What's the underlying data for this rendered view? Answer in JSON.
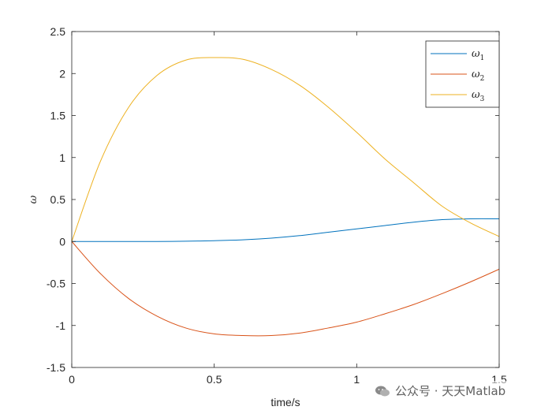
{
  "chart_data": {
    "type": "line",
    "xlabel": "time/s",
    "ylabel": "ω",
    "xlim": [
      0,
      1.5
    ],
    "ylim": [
      -1.5,
      2.5
    ],
    "x_ticks": [
      "0",
      "0.5",
      "1",
      "1.5"
    ],
    "y_ticks": [
      "-1.5",
      "-1",
      "-0.5",
      "0",
      "0.5",
      "1",
      "1.5",
      "2",
      "2.5"
    ],
    "grid": false,
    "legend_placement": "top-right",
    "x": [
      0,
      0.1,
      0.2,
      0.3,
      0.4,
      0.5,
      0.6,
      0.7,
      0.8,
      0.9,
      1.0,
      1.1,
      1.2,
      1.3,
      1.4,
      1.5
    ],
    "series": [
      {
        "name": "ω",
        "subscript": "1",
        "color": "#0072BD",
        "values": [
          0,
          0.0,
          0.0,
          0.0,
          0.003,
          0.01,
          0.02,
          0.04,
          0.07,
          0.11,
          0.15,
          0.19,
          0.23,
          0.26,
          0.27,
          0.27
        ]
      },
      {
        "name": "ω",
        "subscript": "2",
        "color": "#D95319",
        "values": [
          0,
          -0.38,
          -0.68,
          -0.89,
          -1.03,
          -1.1,
          -1.12,
          -1.12,
          -1.09,
          -1.03,
          -0.96,
          -0.86,
          -0.75,
          -0.62,
          -0.48,
          -0.33
        ]
      },
      {
        "name": "ω",
        "subscript": "3",
        "color": "#EDB120",
        "values": [
          0,
          0.95,
          1.6,
          1.98,
          2.16,
          2.19,
          2.17,
          2.05,
          1.86,
          1.6,
          1.3,
          0.98,
          0.7,
          0.42,
          0.22,
          0.06
        ]
      }
    ]
  },
  "watermark": {
    "text": "公众号 · 天天Matlab",
    "icon": "wechat-icon"
  }
}
